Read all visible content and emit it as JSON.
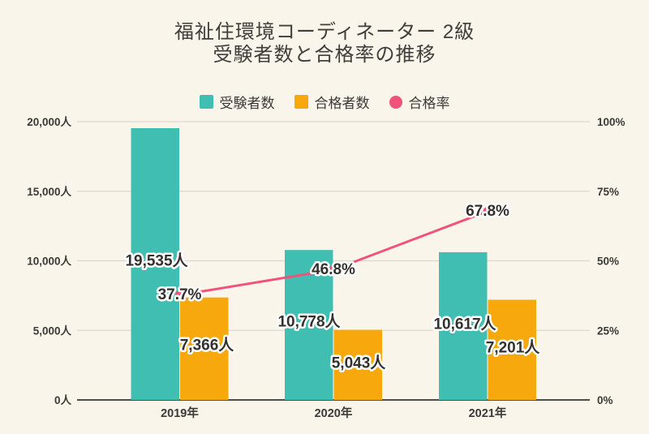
{
  "title": {
    "line1": "福祉住環境コーディネーター 2級",
    "line2": "受験者数と合格率の推移"
  },
  "legend": {
    "items": [
      {
        "label": "受験者数",
        "marker": "square",
        "color": "#41beb2"
      },
      {
        "label": "合格者数",
        "marker": "square",
        "color": "#f7a80c"
      },
      {
        "label": "合格率",
        "marker": "circle",
        "color": "#f0527b"
      }
    ]
  },
  "axes": {
    "left_ticks": [
      "0人",
      "5,000人",
      "10,000人",
      "15,000人",
      "20,000人"
    ],
    "right_ticks": [
      "0%",
      "25%",
      "50%",
      "75%",
      "100%"
    ],
    "x_labels": [
      "2019年",
      "2020年",
      "2021年"
    ]
  },
  "colors": {
    "background": "#faf5ea",
    "grid": "#ddd8cd",
    "baseline": "#4f4b45",
    "text": "#3b3a37",
    "examinees": "#41beb2",
    "passers": "#f7a80c",
    "rate": "#f0527b"
  },
  "chart_data": {
    "type": "bar",
    "title": "福祉住環境コーディネーター 2級 受験者数と合格率の推移",
    "categories": [
      "2019年",
      "2020年",
      "2021年"
    ],
    "series": [
      {
        "name": "受験者数",
        "kind": "bar",
        "color": "#41beb2",
        "axis": "left",
        "values": [
          19535,
          10778,
          10617
        ],
        "labels": [
          "19,535人",
          "10,778人",
          "10,617人"
        ]
      },
      {
        "name": "合格者数",
        "kind": "bar",
        "color": "#f7a80c",
        "axis": "left",
        "values": [
          7366,
          5043,
          7201
        ],
        "labels": [
          "7,366人",
          "5,043人",
          "7,201人"
        ]
      },
      {
        "name": "合格率",
        "kind": "line",
        "color": "#f0527b",
        "axis": "right",
        "values": [
          37.7,
          46.8,
          67.8
        ],
        "labels": [
          "37.7%",
          "46.8%",
          "67.8%"
        ]
      }
    ],
    "left_axis": {
      "min": 0,
      "max": 20000,
      "step": 5000,
      "unit": "人"
    },
    "right_axis": {
      "min": 0,
      "max": 100,
      "step": 25,
      "unit": "%"
    },
    "grid": true,
    "legend_position": "top"
  }
}
